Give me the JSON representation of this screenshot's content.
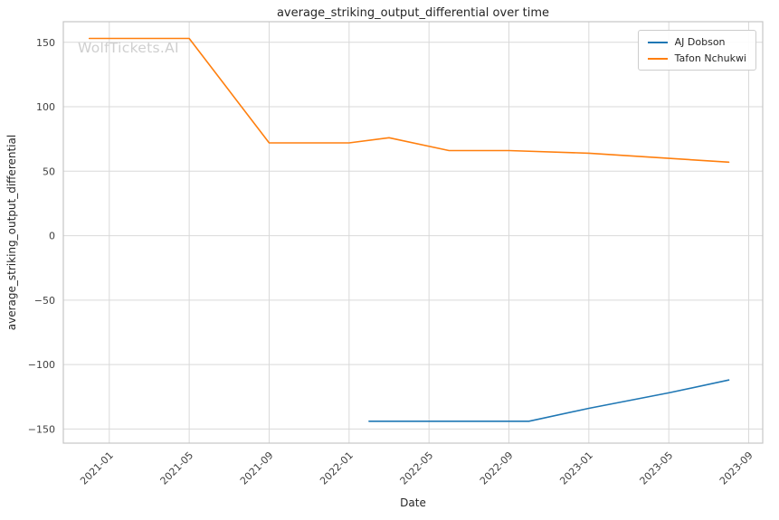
{
  "chart_data": {
    "type": "line",
    "title": "average_striking_output_differential over time",
    "xlabel": "Date",
    "ylabel": "average_striking_output_differential",
    "watermark": "WolfTickets.AI",
    "grid": true,
    "legend_position": "upper right",
    "ylim": [
      -161,
      166
    ],
    "yticks": [
      -150,
      -100,
      -50,
      0,
      50,
      100,
      150
    ],
    "xticks": [
      "2021-01",
      "2021-05",
      "2021-09",
      "2022-01",
      "2022-05",
      "2022-09",
      "2023-01",
      "2023-05",
      "2023-09"
    ],
    "xlim_months_from_2021_01": [
      -2.3,
      32.7
    ],
    "colors": {
      "grid": "#d9d9d9",
      "spine": "#c6c6c6",
      "tick_text": "#404040"
    },
    "series": [
      {
        "name": "AJ Dobson",
        "color": "#1f77b4",
        "points": [
          [
            "2022-02",
            -144
          ],
          [
            "2022-10",
            -144
          ],
          [
            "2023-01",
            -134
          ],
          [
            "2023-05",
            -122
          ],
          [
            "2023-08",
            -112
          ]
        ]
      },
      {
        "name": "Tafon Nchukwi",
        "color": "#ff7f0e",
        "points": [
          [
            "2020-12",
            153
          ],
          [
            "2021-05",
            153
          ],
          [
            "2021-09",
            72
          ],
          [
            "2022-01",
            72
          ],
          [
            "2022-03",
            76
          ],
          [
            "2022-06",
            66
          ],
          [
            "2022-09",
            66
          ],
          [
            "2023-01",
            64
          ],
          [
            "2023-05",
            60
          ],
          [
            "2023-08",
            57
          ]
        ]
      }
    ]
  }
}
